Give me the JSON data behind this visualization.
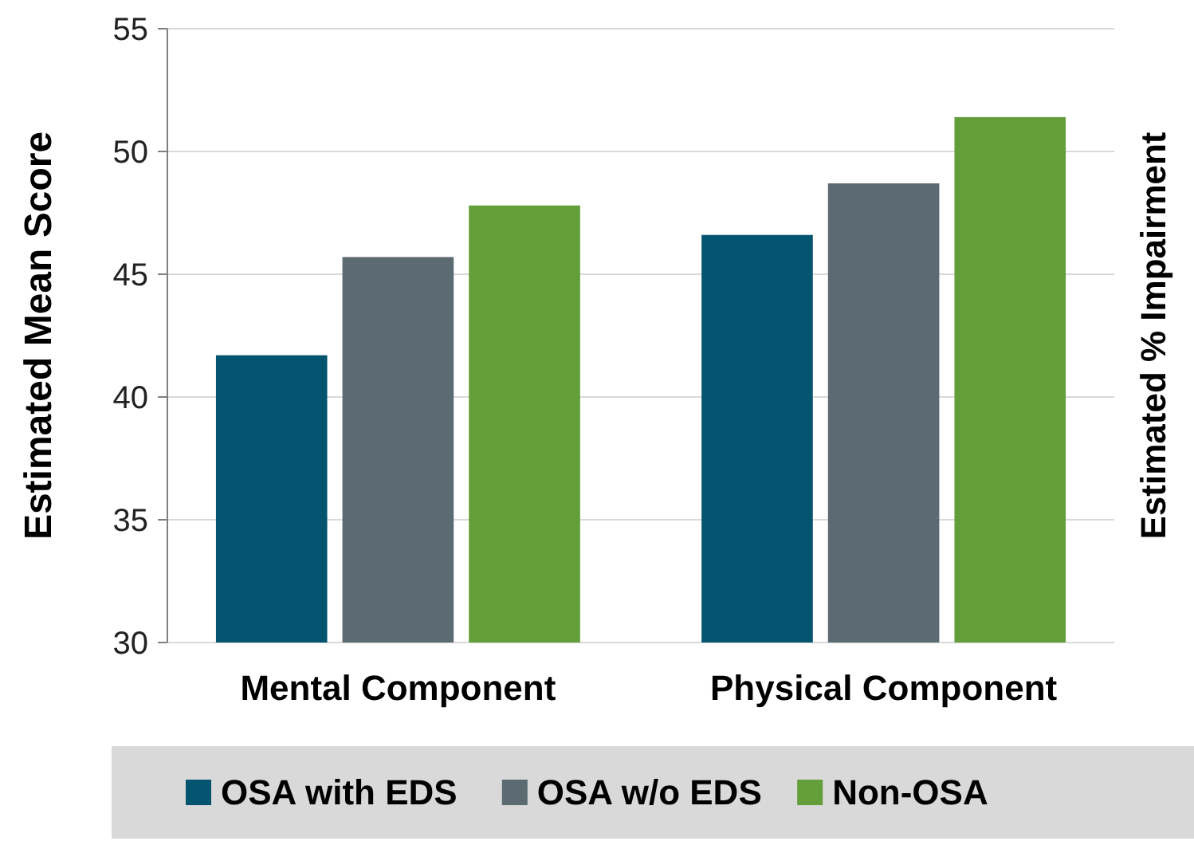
{
  "chart_data": {
    "type": "bar",
    "ylabel": "Estimated Mean Score",
    "y2label": "Estimated % Impairment",
    "categories": [
      "Mental Component",
      "Physical Component"
    ],
    "series": [
      {
        "name": "OSA with EDS",
        "color": "#03546f",
        "values": [
          41.7,
          46.6
        ]
      },
      {
        "name": "OSA w/o EDS",
        "color": "#5c6a71",
        "values": [
          45.7,
          48.7
        ]
      },
      {
        "name": "Non-OSA",
        "color": "#639e3b",
        "values": [
          47.8,
          51.4
        ]
      }
    ],
    "ylim": [
      30,
      55
    ],
    "yticks": [
      30,
      35,
      40,
      45,
      50,
      55
    ],
    "grid": "y",
    "legend": "bottom"
  }
}
